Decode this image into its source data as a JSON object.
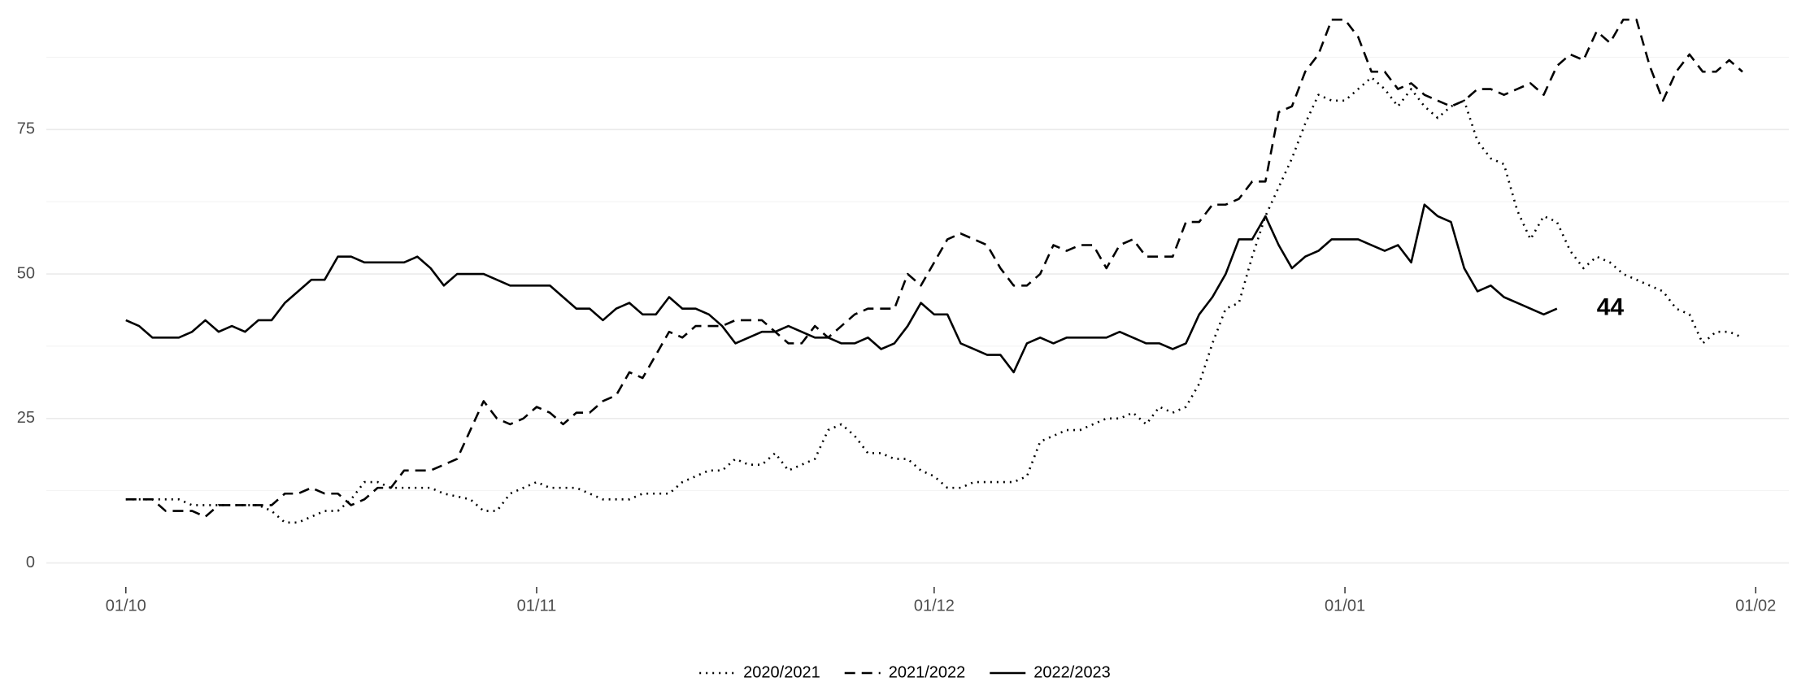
{
  "chart_data": {
    "type": "line",
    "xlim": [
      -6,
      125.5
    ],
    "xticks": [
      {
        "value": 0,
        "label": "01/10"
      },
      {
        "value": 31,
        "label": "01/11"
      },
      {
        "value": 61,
        "label": "01/12"
      },
      {
        "value": 92,
        "label": "01/01"
      },
      {
        "value": 123,
        "label": "01/02"
      }
    ],
    "ylim": [
      -4,
      96
    ],
    "yticks": [
      0,
      25,
      50,
      75
    ],
    "yminor": [
      12.5,
      37.5,
      62.5,
      87.5
    ],
    "grid": true,
    "legend": "bottom",
    "series": [
      {
        "name": "2020/2021",
        "color": "#000000",
        "linestyle": "dotted",
        "x": [
          0,
          3,
          4,
          5,
          6,
          10,
          11,
          12,
          13,
          14,
          15,
          16,
          17,
          18,
          19,
          20,
          22,
          23,
          24,
          26,
          27,
          28,
          29,
          31,
          32,
          34,
          35,
          36,
          38,
          39,
          41,
          42,
          43,
          44,
          45,
          46,
          47,
          48,
          49,
          50,
          51,
          52,
          53,
          54,
          55,
          56,
          57,
          58,
          59,
          60,
          61,
          62,
          63,
          64,
          67,
          68,
          69,
          70,
          71,
          72,
          73,
          74,
          75,
          76,
          77,
          78,
          79,
          80,
          81,
          82,
          83,
          84,
          85,
          86,
          87,
          88,
          89,
          90,
          91,
          92,
          93,
          94,
          95,
          96,
          97,
          98,
          99,
          100,
          101,
          102,
          103,
          104,
          105,
          106,
          107,
          108,
          109,
          110,
          111,
          112,
          113,
          114,
          115,
          116,
          117,
          118,
          119,
          120,
          121,
          122
        ],
        "values": [
          11,
          11,
          11,
          10,
          10,
          10,
          9,
          7,
          7,
          8,
          9,
          9,
          11,
          14,
          14,
          13,
          13,
          13,
          12,
          11,
          9,
          9,
          12,
          14,
          13,
          13,
          12,
          11,
          11,
          12,
          12,
          14,
          15,
          16,
          16,
          18,
          17,
          17,
          19,
          16,
          17,
          18,
          23,
          24,
          22,
          19,
          19,
          18,
          18,
          16,
          15,
          13,
          13,
          14,
          14,
          15,
          21,
          22,
          23,
          23,
          24,
          25,
          25,
          26,
          24,
          27,
          26,
          27,
          31,
          38,
          44,
          45,
          53,
          60,
          65,
          70,
          76,
          81,
          80,
          80,
          82,
          84,
          82,
          79,
          82,
          79,
          77,
          79,
          80,
          73,
          70,
          69,
          61,
          56,
          60,
          59,
          54,
          51,
          53,
          52,
          50,
          49,
          48,
          47,
          44,
          43,
          38,
          40,
          40,
          39
        ]
      },
      {
        "name": "2021/2022",
        "color": "#000000",
        "linestyle": "dashed",
        "x": [
          0,
          2,
          3,
          4,
          5,
          6,
          7,
          10,
          11,
          12,
          13,
          14,
          15,
          16,
          17,
          18,
          19,
          20,
          21,
          22,
          23,
          24,
          25,
          26,
          27,
          28,
          29,
          30,
          31,
          32,
          33,
          34,
          35,
          36,
          37,
          38,
          39,
          40,
          41,
          42,
          43,
          45,
          46,
          48,
          49,
          50,
          51,
          52,
          53,
          54,
          55,
          56,
          58,
          59,
          60,
          61,
          62,
          63,
          64,
          65,
          66,
          67,
          68,
          69,
          70,
          71,
          72,
          73,
          74,
          75,
          76,
          77,
          79,
          80,
          81,
          82,
          83,
          84,
          85,
          86,
          87,
          88,
          89,
          90,
          91,
          92,
          93,
          94,
          95,
          96,
          97,
          98,
          99,
          100,
          101,
          102,
          103,
          104,
          105,
          106,
          107,
          108,
          109,
          110,
          111,
          112,
          113,
          114,
          115,
          116,
          117,
          118,
          119,
          120,
          121,
          122
        ],
        "values": [
          11,
          11,
          9,
          9,
          9,
          8,
          10,
          10,
          10,
          12,
          12,
          13,
          12,
          12,
          10,
          11,
          13,
          13,
          16,
          16,
          16,
          17,
          18,
          23,
          28,
          25,
          24,
          25,
          27,
          26,
          24,
          26,
          26,
          28,
          29,
          33,
          32,
          36,
          40,
          39,
          41,
          41,
          42,
          42,
          40,
          38,
          38,
          41,
          39,
          41,
          43,
          44,
          44,
          50,
          48,
          52,
          56,
          57,
          56,
          55,
          51,
          48,
          48,
          50,
          55,
          54,
          55,
          55,
          51,
          55,
          56,
          53,
          53,
          59,
          59,
          62,
          62,
          63,
          66,
          66,
          78,
          79,
          85,
          88,
          94,
          94,
          91,
          85,
          85,
          82,
          83,
          81,
          80,
          79,
          80,
          82,
          82,
          81,
          82,
          83,
          81,
          86,
          88,
          87,
          92,
          90,
          94,
          94,
          86,
          80,
          85,
          88,
          85,
          85,
          87,
          85
        ]
      },
      {
        "name": "2022/2023",
        "color": "#000000",
        "linestyle": "solid",
        "x": [
          0,
          1,
          2,
          4,
          5,
          6,
          7,
          8,
          9,
          10,
          11,
          12,
          14,
          15,
          16,
          17,
          18,
          20,
          21,
          22,
          23,
          24,
          25,
          27,
          29,
          32,
          33,
          34,
          35,
          36,
          37,
          38,
          39,
          40,
          41,
          42,
          43,
          44,
          45,
          46,
          47,
          48,
          49,
          50,
          51,
          52,
          53,
          54,
          55,
          56,
          57,
          58,
          59,
          60,
          61,
          62,
          63,
          64,
          65,
          66,
          67,
          68,
          69,
          70,
          71,
          74,
          75,
          76,
          77,
          78,
          79,
          80,
          81,
          82,
          83,
          84,
          85,
          86,
          87,
          88,
          89,
          90,
          91,
          93,
          94,
          95,
          96,
          97,
          98,
          99,
          100,
          101,
          102,
          103,
          104,
          105,
          106,
          107,
          108
        ],
        "values": [
          42,
          41,
          39,
          39,
          40,
          42,
          40,
          41,
          40,
          42,
          42,
          45,
          49,
          49,
          53,
          53,
          52,
          52,
          52,
          53,
          51,
          48,
          50,
          50,
          48,
          48,
          46,
          44,
          44,
          42,
          44,
          45,
          43,
          43,
          46,
          44,
          44,
          43,
          41,
          38,
          39,
          40,
          40,
          41,
          40,
          39,
          39,
          38,
          38,
          39,
          37,
          38,
          41,
          45,
          43,
          43,
          38,
          37,
          36,
          36,
          33,
          38,
          39,
          38,
          39,
          39,
          40,
          39,
          38,
          38,
          37,
          38,
          43,
          46,
          50,
          56,
          56,
          60,
          55,
          51,
          53,
          54,
          56,
          56,
          55,
          54,
          55,
          52,
          62,
          60,
          59,
          51,
          47,
          48,
          46,
          45,
          44,
          43,
          44
        ]
      }
    ],
    "annotations": [
      {
        "text": "44",
        "x": 111,
        "y": 44
      }
    ]
  }
}
